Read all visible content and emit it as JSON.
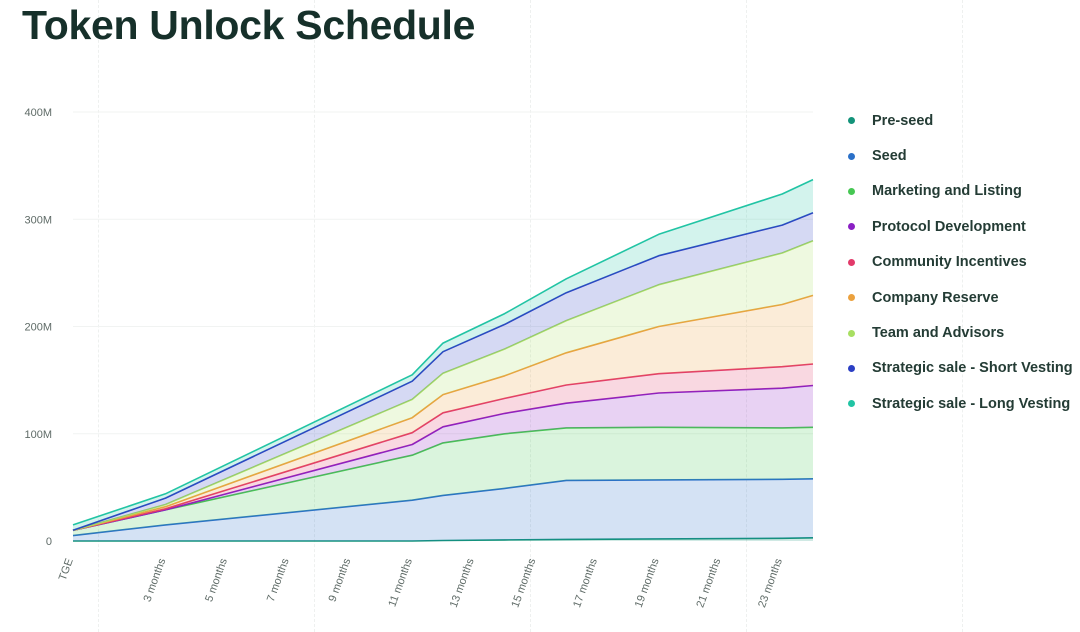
{
  "page_title": "Token Unlock Schedule",
  "chart_data": {
    "type": "area",
    "stacked": true,
    "title": "Token Unlock Schedule",
    "xlabel": "",
    "ylabel": "",
    "ylim": [
      0,
      400
    ],
    "y_unit": "M",
    "y_ticks": [
      {
        "value": 0,
        "label": "0"
      },
      {
        "value": 100,
        "label": "100M"
      },
      {
        "value": 200,
        "label": "200M"
      },
      {
        "value": 300,
        "label": "300M"
      },
      {
        "value": 400,
        "label": "400M"
      }
    ],
    "x": [
      0,
      3,
      11,
      12,
      14,
      16,
      19,
      23,
      24
    ],
    "x_ticks": [
      {
        "value": 0,
        "label": "TGE"
      },
      {
        "value": 3,
        "label": "3 months"
      },
      {
        "value": 5,
        "label": "5 months"
      },
      {
        "value": 7,
        "label": "7 months"
      },
      {
        "value": 9,
        "label": "9 months"
      },
      {
        "value": 11,
        "label": "11 months"
      },
      {
        "value": 13,
        "label": "13 months"
      },
      {
        "value": 15,
        "label": "15 months"
      },
      {
        "value": 17,
        "label": "17 months"
      },
      {
        "value": 19,
        "label": "19 months"
      },
      {
        "value": 21,
        "label": "21 months"
      },
      {
        "value": 23,
        "label": "23 months"
      }
    ],
    "series": [
      {
        "name": "Pre-seed",
        "color": "#13937a",
        "values": [
          0,
          0,
          0,
          0.5,
          1,
          1.5,
          2,
          2.5,
          3
        ]
      },
      {
        "name": "Seed",
        "color": "#2a70c8",
        "values": [
          5,
          15,
          38,
          42,
          48,
          55,
          55,
          55,
          55
        ]
      },
      {
        "name": "Marketing and Listing",
        "color": "#46c753",
        "values": [
          5,
          14,
          42,
          49,
          51,
          49,
          49,
          48,
          48
        ]
      },
      {
        "name": "Protocol Development",
        "color": "#8a1fc4",
        "values": [
          0,
          0,
          10,
          15,
          19,
          23,
          32,
          37,
          39
        ]
      },
      {
        "name": "Community Incentives",
        "color": "#e23a6a",
        "values": [
          0,
          1,
          11,
          13,
          14,
          17,
          18,
          20,
          20
        ]
      },
      {
        "name": "Company Reserve",
        "color": "#eba13e",
        "values": [
          0,
          2,
          14,
          17,
          21,
          30,
          44,
          58,
          64
        ]
      },
      {
        "name": "Team and Advisors",
        "color": "#a8df62",
        "values": [
          0,
          2,
          17,
          20,
          25,
          30,
          39,
          48,
          51
        ]
      },
      {
        "name": "Strategic sale - Short Vesting",
        "color": "#2b3fc4",
        "values": [
          0,
          6,
          17,
          20,
          23,
          26,
          27,
          26,
          26
        ]
      },
      {
        "name": "Strategic sale - Long Vesting",
        "color": "#21c4a4",
        "values": [
          5,
          4,
          6,
          8,
          10,
          13,
          20,
          29,
          31
        ]
      }
    ]
  }
}
